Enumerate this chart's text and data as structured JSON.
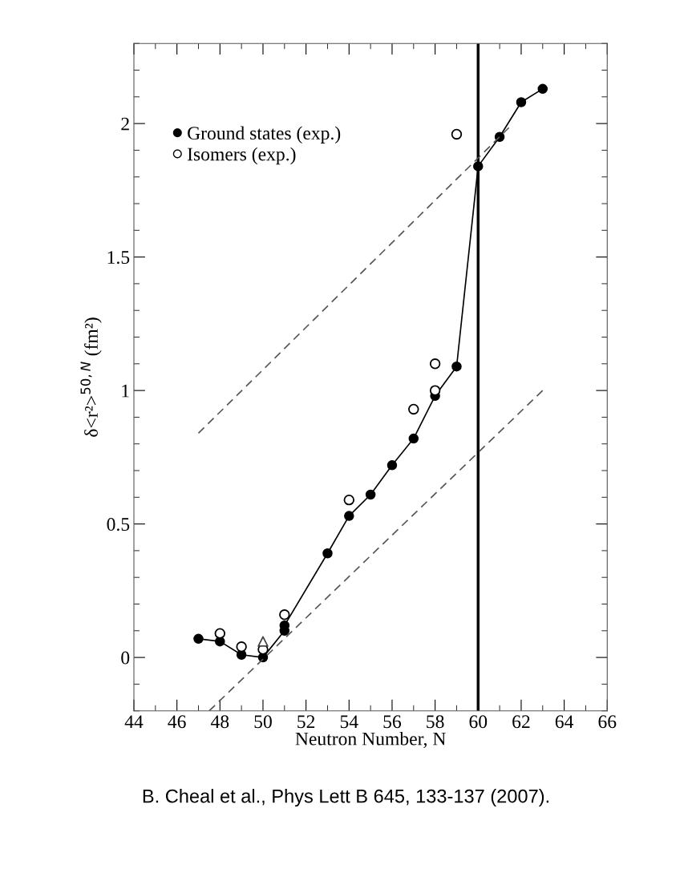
{
  "chart_data": {
    "type": "line",
    "xlabel": "Neutron Number, N",
    "ylabel": "δ<r²>$^{50,N}$ (fm²)",
    "xlim": [
      44,
      66
    ],
    "xticks": [
      44,
      46,
      48,
      50,
      52,
      54,
      56,
      58,
      60,
      62,
      64,
      66
    ],
    "ylim": [
      -0.2,
      2.3
    ],
    "yticks": [
      0,
      0.5,
      1,
      1.5,
      2
    ],
    "legend": "top left",
    "grid": false,
    "series": [
      {
        "name": "Ground states (exp.)",
        "marker": "circle",
        "color": "#000000",
        "x": [
          47,
          48,
          49,
          50,
          51,
          51,
          53,
          54,
          55,
          56,
          57,
          58,
          59,
          60,
          61,
          62,
          63
        ],
        "values": [
          0.07,
          0.06,
          0.01,
          0.0,
          0.1,
          0.12,
          0.39,
          0.53,
          0.61,
          0.72,
          0.82,
          0.98,
          1.09,
          1.84,
          1.95,
          2.08,
          2.13
        ]
      },
      {
        "name": "Isomers (exp.)",
        "type": "scatter",
        "marker": "circle",
        "color": "#000000",
        "x": [
          48,
          49,
          50,
          51,
          54,
          57,
          58,
          58,
          59
        ],
        "values": [
          0.09,
          0.04,
          0.03,
          0.16,
          0.59,
          0.93,
          1.0,
          1.1,
          1.96
        ]
      },
      {
        "type": "scatter",
        "marker": "triangle",
        "color": "#444444",
        "x": [
          50
        ],
        "values": [
          0.06
        ]
      },
      {
        "marker": "none",
        "line_style": "dashed",
        "color": "#555555",
        "x": [
          47,
          61.5
        ],
        "values": [
          0.84,
          1.99
        ]
      },
      {
        "marker": "none",
        "line_style": "dashed",
        "color": "#555555",
        "x": [
          47.5,
          63
        ],
        "values": [
          -0.2,
          1.0
        ]
      }
    ],
    "ref_lines": [
      {
        "axis": "x",
        "value": 60,
        "color": "#000000",
        "line_style": "solid"
      }
    ],
    "annotations": [
      "B. Cheal et al., Phys Lett B 645, 133-137 (2007)."
    ]
  }
}
